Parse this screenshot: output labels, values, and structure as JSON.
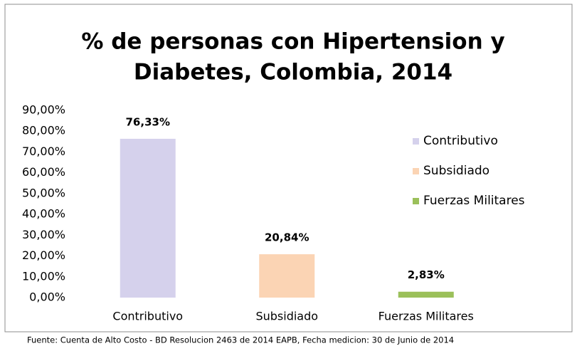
{
  "chart_data": {
    "type": "bar",
    "title": [
      "% de personas con Hipertension y",
      "Diabetes, Colombia, 2014"
    ],
    "categories": [
      "Contributivo",
      "Subsidiado",
      "Fuerzas Militares"
    ],
    "values": [
      76.33,
      20.84,
      2.83
    ],
    "value_labels": [
      "76,33%",
      "20,84%",
      "2,83%"
    ],
    "colors": [
      "#d5d1ec",
      "#fbd4b4",
      "#9bc05a"
    ],
    "ylim": [
      0,
      90
    ],
    "yticks": [
      {
        "value": 0,
        "label": "0,00%"
      },
      {
        "value": 10,
        "label": "10,00%"
      },
      {
        "value": 20,
        "label": "20,00%"
      },
      {
        "value": 30,
        "label": "30,00%"
      },
      {
        "value": 40,
        "label": "40,00%"
      },
      {
        "value": 50,
        "label": "50,00%"
      },
      {
        "value": 60,
        "label": "60,00%"
      },
      {
        "value": 70,
        "label": "70,00%"
      },
      {
        "value": 80,
        "label": "80,00%"
      },
      {
        "value": 90,
        "label": "90,00%"
      }
    ],
    "grid": false,
    "legend": "right",
    "footnote": "Fuente: Cuenta de Alto Costo - BD Resolucion 2463 de 2014  EAPB, Fecha medicion: 30 de Junio de 2014"
  }
}
